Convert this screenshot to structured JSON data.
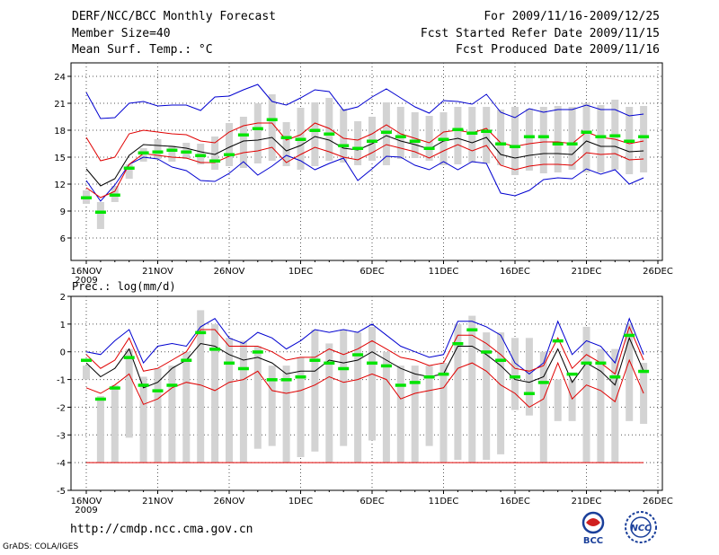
{
  "header": {
    "title": "DERF/NCC/BCC Monthly Forecast",
    "member_size": "Member Size=40",
    "variable": "Mean Surf. Temp.: °C",
    "period": "For 2009/11/16-2009/12/25",
    "started": "Fcst Started Refer Date 2009/11/15",
    "produced": "Fcst Produced Date 2009/11/16"
  },
  "footer": {
    "url": "http://cmdp.ncc.cma.gov.cn",
    "grads": "GrADS: COLA/IGES",
    "bcc_logo_text": "BCC",
    "ncc_logo_text": "NCC"
  },
  "colors": {
    "box": "#d3d3d3",
    "median": "#00e400",
    "mean": "#000000",
    "sd": "#e00000",
    "extreme": "#0000d0",
    "grid": "#555555"
  },
  "chart_data": [
    {
      "type": "box",
      "title": "Mean Surf. Temp.: °C",
      "x_ticks": [
        "16NOV",
        "21NOV",
        "26NOV",
        "1DEC",
        "6DEC",
        "11DEC",
        "16DEC",
        "21DEC",
        "26DEC"
      ],
      "x_sublabel": "2009",
      "y_ticks": [
        6,
        9,
        12,
        15,
        18,
        21,
        24
      ],
      "ylim": [
        3.5,
        25.5
      ],
      "days": 40,
      "box_low": [
        9.8,
        7.0,
        10.0,
        12.6,
        14.5,
        14.8,
        14.5,
        14.8,
        14.2,
        13.6,
        14.0,
        13.8,
        14.3,
        14.6,
        14.0,
        13.6,
        14.0,
        14.6,
        14.4,
        14.1,
        14.6,
        14.1,
        14.8,
        14.9,
        14.6,
        14.1,
        14.2,
        14.4,
        14.3,
        14.1,
        13.0,
        13.5,
        13.2,
        13.3,
        13.6,
        13.3,
        13.3,
        13.6,
        13.1,
        13.3
      ],
      "box_high": [
        11.3,
        10.0,
        11.8,
        14.2,
        16.0,
        17.0,
        16.3,
        16.6,
        16.5,
        17.3,
        18.8,
        19.5,
        21.0,
        22.0,
        18.9,
        20.5,
        21.1,
        21.6,
        20.4,
        19.0,
        19.5,
        21.1,
        20.6,
        20.0,
        19.6,
        20.0,
        20.6,
        20.6,
        20.6,
        20.3,
        20.6,
        20.4,
        20.6,
        20.7,
        20.6,
        21.0,
        20.8,
        21.4,
        20.6,
        20.7
      ],
      "median": [
        10.5,
        8.9,
        10.8,
        13.8,
        15.5,
        15.6,
        15.8,
        15.6,
        15.2,
        14.6,
        15.3,
        17.5,
        18.2,
        19.2,
        17.2,
        17.0,
        18.0,
        17.6,
        16.3,
        16.0,
        16.8,
        17.8,
        17.3,
        16.8,
        16.0,
        17.0,
        18.1,
        17.7,
        17.9,
        16.5,
        16.2,
        17.3,
        17.3,
        16.5,
        16.5,
        17.8,
        17.3,
        17.4,
        16.8,
        17.3
      ],
      "mean": [
        13.7,
        11.8,
        12.6,
        15.2,
        16.4,
        16.3,
        16.2,
        16.0,
        15.6,
        15.3,
        16.1,
        16.8,
        16.9,
        17.2,
        15.7,
        16.3,
        17.3,
        16.9,
        16.0,
        15.8,
        16.5,
        17.4,
        16.8,
        16.4,
        15.9,
        16.8,
        17.1,
        16.6,
        17.2,
        15.3,
        14.9,
        15.2,
        15.4,
        15.4,
        15.3,
        16.8,
        16.2,
        16.2,
        15.6,
        15.7
      ],
      "sd_high": [
        17.2,
        14.6,
        15.0,
        17.6,
        18.0,
        17.8,
        17.6,
        17.5,
        16.8,
        16.6,
        17.8,
        18.5,
        18.8,
        18.8,
        16.9,
        17.5,
        18.8,
        18.2,
        17.1,
        16.9,
        17.6,
        18.6,
        17.6,
        17.1,
        16.6,
        17.8,
        18.0,
        17.7,
        18.2,
        16.6,
        16.2,
        16.5,
        16.7,
        16.7,
        16.5,
        17.8,
        17.2,
        17.0,
        16.5,
        16.8
      ],
      "sd_low": [
        11.6,
        10.5,
        11.2,
        14.2,
        15.4,
        15.2,
        15.0,
        14.9,
        14.4,
        14.4,
        15.1,
        15.5,
        15.7,
        16.1,
        14.4,
        15.3,
        16.1,
        15.6,
        15.0,
        14.7,
        15.5,
        16.4,
        16.0,
        15.6,
        14.9,
        15.7,
        16.4,
        15.7,
        16.3,
        14.1,
        13.6,
        14.0,
        14.2,
        14.2,
        14.1,
        15.5,
        15.3,
        15.4,
        14.7,
        14.8
      ],
      "max": [
        22.2,
        19.3,
        19.4,
        21.0,
        21.2,
        20.7,
        20.8,
        20.8,
        20.2,
        21.7,
        21.8,
        22.5,
        23.1,
        21.2,
        20.8,
        21.6,
        22.5,
        22.3,
        20.2,
        20.6,
        21.7,
        22.6,
        21.6,
        20.6,
        19.9,
        21.3,
        21.2,
        20.9,
        22.0,
        20.0,
        19.4,
        20.4,
        20.0,
        20.3,
        20.3,
        20.8,
        20.3,
        20.3,
        19.6,
        19.8
      ],
      "min": [
        12.4,
        10.1,
        11.9,
        14.2,
        15.0,
        14.8,
        13.9,
        13.5,
        12.4,
        12.3,
        13.2,
        14.5,
        13.0,
        14.0,
        15.2,
        14.6,
        13.6,
        14.3,
        14.9,
        12.4,
        13.7,
        15.1,
        15.0,
        14.1,
        13.6,
        14.5,
        13.6,
        14.5,
        14.3,
        11.0,
        10.7,
        11.3,
        12.5,
        12.7,
        12.6,
        13.7,
        13.1,
        13.6,
        12.0,
        12.7
      ]
    },
    {
      "type": "box",
      "title": "Prec.: log(mm/d)",
      "x_ticks": [
        "16NOV",
        "21NOV",
        "26NOV",
        "1DEC",
        "6DEC",
        "11DEC",
        "16DEC",
        "21DEC",
        "26DEC"
      ],
      "x_sublabel": "2009",
      "y_ticks": [
        -5,
        -4,
        -3,
        -2,
        -1,
        0,
        1,
        2
      ],
      "ylim": [
        -5,
        2
      ],
      "days": 40,
      "box_low": [
        -1.0,
        -4.0,
        -4.0,
        -3.1,
        -4.0,
        -4.0,
        -4.0,
        -4.0,
        -4.0,
        -4.0,
        -4.0,
        -4.0,
        -3.5,
        -3.4,
        -4.0,
        -3.8,
        -3.6,
        -4.0,
        -3.4,
        -4.0,
        -3.2,
        -4.0,
        -4.0,
        -4.0,
        -3.4,
        -4.0,
        -3.9,
        -4.0,
        -3.9,
        -3.7,
        -2.1,
        -2.3,
        -4.0,
        -2.5,
        -2.5,
        -4.0,
        -4.0,
        -4.0,
        -2.5,
        -2.6
      ],
      "box_high": [
        -0.5,
        -1.6,
        -1.2,
        0.1,
        -0.9,
        -0.6,
        -0.5,
        0.0,
        1.5,
        1.0,
        0.5,
        0.4,
        0.2,
        -0.5,
        -0.5,
        -0.2,
        0.8,
        0.3,
        0.8,
        0.7,
        0.9,
        0.0,
        -0.5,
        -0.5,
        -0.5,
        -0.4,
        1.0,
        1.3,
        0.7,
        0.7,
        0.5,
        0.5,
        0.0,
        -1.0,
        -1.0,
        0.9,
        0.1,
        0.1,
        1.0,
        -0.4
      ],
      "median": [
        -0.3,
        -1.7,
        -1.3,
        -0.2,
        -1.2,
        -1.4,
        -1.2,
        -0.3,
        0.7,
        0.1,
        -0.4,
        -0.6,
        0.0,
        -1.0,
        -1.0,
        -0.9,
        -0.3,
        -0.4,
        -0.6,
        -0.1,
        -0.4,
        -0.5,
        -1.2,
        -1.1,
        -0.9,
        -0.8,
        0.3,
        0.8,
        0.0,
        -0.3,
        -0.9,
        -1.5,
        -1.1,
        0.4,
        -0.8,
        -0.4,
        -0.4,
        -0.9,
        0.6,
        -0.7
      ],
      "mean": [
        -0.4,
        -0.9,
        -0.6,
        0.1,
        -1.3,
        -1.1,
        -0.6,
        -0.3,
        0.3,
        0.2,
        -0.1,
        -0.3,
        -0.2,
        -0.4,
        -0.8,
        -0.7,
        -0.7,
        -0.3,
        -0.4,
        -0.3,
        0.0,
        -0.3,
        -0.6,
        -0.8,
        -0.9,
        -0.8,
        0.2,
        0.2,
        -0.1,
        -0.5,
        -1.0,
        -1.1,
        -0.9,
        0.1,
        -1.1,
        -0.4,
        -0.7,
        -1.2,
        0.5,
        -0.7
      ],
      "sd_high": [
        -0.1,
        -0.6,
        -0.3,
        0.5,
        -0.7,
        -0.6,
        -0.3,
        0.0,
        0.8,
        0.8,
        0.2,
        0.2,
        0.2,
        0.0,
        -0.3,
        -0.2,
        -0.2,
        0.1,
        -0.1,
        0.1,
        0.4,
        0.1,
        -0.2,
        -0.3,
        -0.5,
        -0.4,
        0.6,
        0.6,
        0.3,
        -0.1,
        -0.6,
        -0.7,
        -0.5,
        0.5,
        -0.6,
        -0.1,
        -0.4,
        -0.8,
        0.9,
        -0.3
      ],
      "sd_low": [
        -1.3,
        -1.5,
        -1.2,
        -0.8,
        -1.9,
        -1.7,
        -1.3,
        -1.1,
        -1.2,
        -1.4,
        -1.1,
        -1.0,
        -0.7,
        -1.4,
        -1.5,
        -1.4,
        -1.2,
        -0.9,
        -1.1,
        -1.0,
        -0.8,
        -1.0,
        -1.7,
        -1.5,
        -1.4,
        -1.3,
        -0.6,
        -0.4,
        -0.7,
        -1.2,
        -1.5,
        -2.0,
        -1.7,
        -0.4,
        -1.7,
        -1.2,
        -1.4,
        -1.8,
        -0.3,
        -1.5
      ],
      "max": [
        0.0,
        -0.1,
        0.4,
        0.8,
        -0.4,
        0.2,
        0.3,
        0.2,
        0.9,
        1.2,
        0.5,
        0.3,
        0.7,
        0.5,
        0.1,
        0.4,
        0.8,
        0.7,
        0.8,
        0.7,
        1.0,
        0.6,
        0.2,
        0.0,
        -0.2,
        -0.1,
        1.1,
        1.1,
        0.9,
        0.6,
        -0.4,
        -0.8,
        -0.4,
        1.1,
        -0.1,
        0.4,
        0.2,
        -0.4,
        1.2,
        -0.1
      ],
      "min": [
        -4.0,
        -4.0,
        -4.0,
        -4.0,
        -4.0,
        -4.0,
        -4.0,
        -4.0,
        -4.0,
        -4.0,
        -4.0,
        -4.0,
        -4.0,
        -4.0,
        -4.0,
        -4.0,
        -4.0,
        -4.0,
        -4.0,
        -4.0,
        -4.0,
        -4.0,
        -4.0,
        -4.0,
        -4.0,
        -4.0,
        -4.0,
        -4.0,
        -4.0,
        -4.0,
        -4.0,
        -4.0,
        -4.0,
        -4.0,
        -4.0,
        -4.0,
        -4.0,
        -4.0,
        -4.0,
        -4.0
      ]
    }
  ]
}
